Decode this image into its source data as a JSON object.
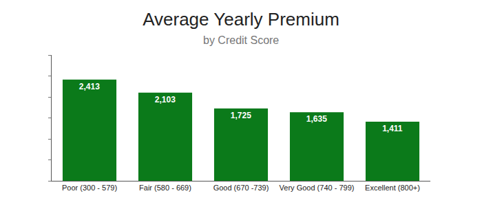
{
  "chart_data": {
    "type": "bar",
    "title": "Average Yearly Premium",
    "subtitle": "by Credit Score",
    "categories": [
      "Poor (300 - 579)",
      "Fair (580 - 669)",
      "Good (670 -739)",
      "Very Good (740 - 799)",
      "Excellent (800+)"
    ],
    "values": [
      2413,
      2103,
      1725,
      1635,
      1411
    ],
    "value_labels": [
      "2,413",
      "2,103",
      "1,725",
      "1,635",
      "1,411"
    ],
    "color": "#0b7a1a",
    "ylim": [
      0,
      3000
    ],
    "yticks": [
      0,
      500,
      1000,
      1500,
      2000,
      2500,
      3000
    ],
    "data_labels": true,
    "tick_labels": "x",
    "grid": false
  }
}
